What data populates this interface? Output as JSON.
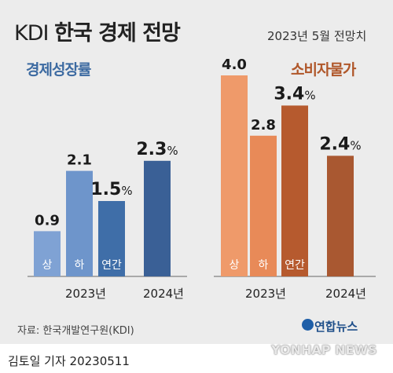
{
  "title_light": "KDI",
  "title_bold": "한국 경제 전망",
  "subtitle": "2023년 5월 전망치",
  "source": "자료: 한국개발연구원(KDI)",
  "brand": "연합뉴스",
  "author": "김토일 기자  20230511",
  "watermark": "YONHAP NEWS",
  "chart_data": [
    {
      "type": "bar",
      "title": "경제성장률",
      "color": "#3c6aa1",
      "groups": [
        "2023년",
        "2024년"
      ],
      "bars": [
        {
          "group": "2023년",
          "label": "상",
          "value": 0.9,
          "display": "0.9",
          "unit": "",
          "color": "#7fa2d4",
          "bold": false
        },
        {
          "group": "2023년",
          "label": "하",
          "value": 2.1,
          "display": "2.1",
          "unit": "",
          "color": "#6e95cb",
          "bold": false
        },
        {
          "group": "2023년",
          "label": "연간",
          "value": 1.5,
          "display": "1.5",
          "unit": "%",
          "color": "#3f6ea8",
          "bold": true
        },
        {
          "group": "2024년",
          "label": "",
          "value": 2.3,
          "display": "2.3",
          "unit": "%",
          "color": "#3a6096",
          "bold": true
        }
      ]
    },
    {
      "type": "bar",
      "title": "소비자물가",
      "color": "#b0572a",
      "groups": [
        "2023년",
        "2024년"
      ],
      "bars": [
        {
          "group": "2023년",
          "label": "상",
          "value": 4.0,
          "display": "4.0",
          "unit": "",
          "color": "#ef9a6a",
          "bold": false
        },
        {
          "group": "2023년",
          "label": "하",
          "value": 2.8,
          "display": "2.8",
          "unit": "",
          "color": "#e88a58",
          "bold": false
        },
        {
          "group": "2023년",
          "label": "연간",
          "value": 3.4,
          "display": "3.4",
          "unit": "%",
          "color": "#b65a2e",
          "bold": true
        },
        {
          "group": "2024년",
          "label": "",
          "value": 2.4,
          "display": "2.4",
          "unit": "%",
          "color": "#a95831",
          "bold": true
        }
      ]
    }
  ]
}
